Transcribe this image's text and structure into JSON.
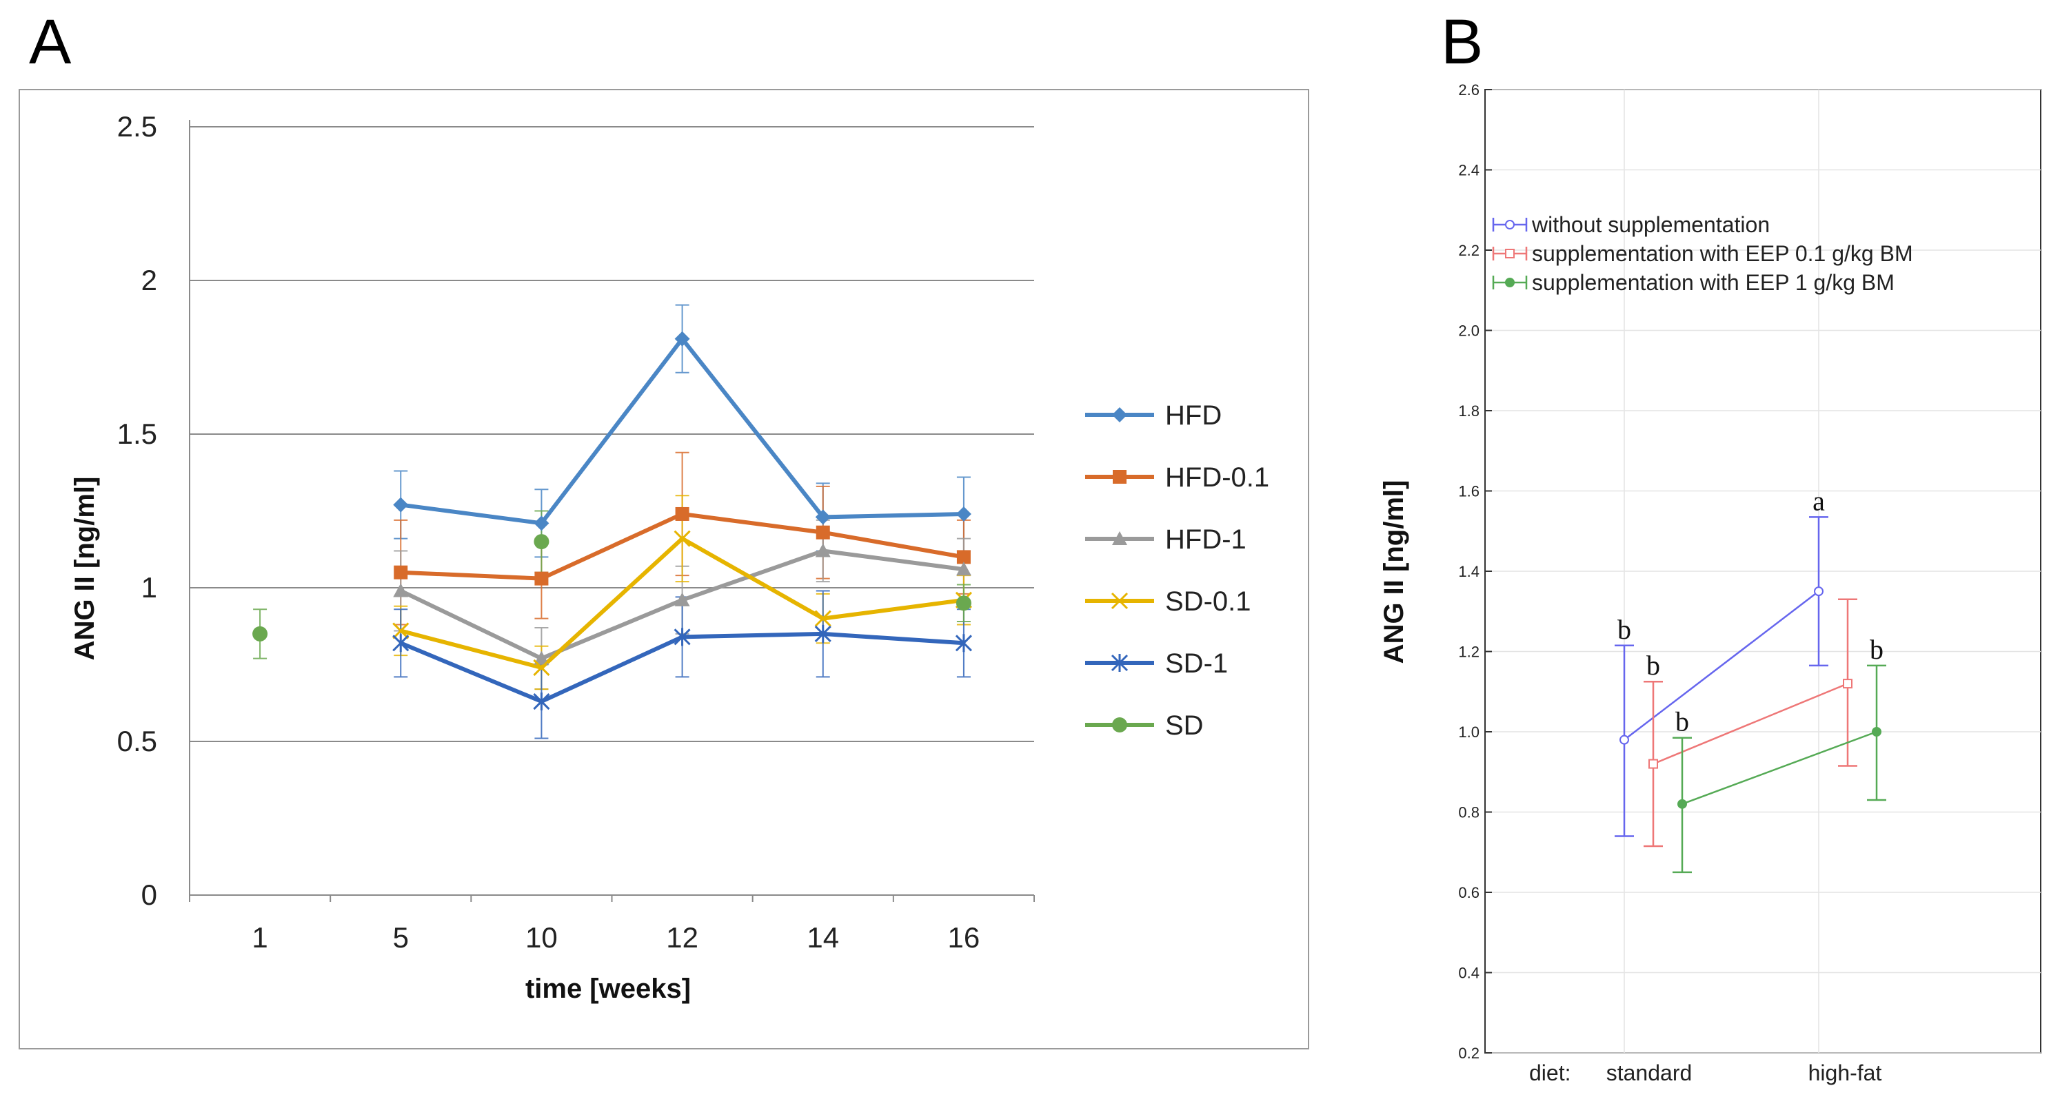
{
  "colors": {
    "HFD": "#4a86c5",
    "HFD-0.1": "#d86b2a",
    "HFD-1": "#9a9a9a",
    "SD-0.1": "#e6b400",
    "SD-1": "#3366bb",
    "SD": "#6aa84f",
    "b_without": "#6666ee",
    "b_eep01": "#ee7777",
    "b_eep1": "#55aa55"
  },
  "chart_data": [
    {
      "panel": "A",
      "type": "line",
      "xlabel": "time [weeks]",
      "ylabel": "ANG II [ng/ml]",
      "categories": [
        "1",
        "5",
        "10",
        "12",
        "14",
        "16"
      ],
      "yticks": [
        "0",
        "0.5",
        "1",
        "1.5",
        "2",
        "2.5"
      ],
      "ylim": [
        0,
        2.5
      ],
      "grid": true,
      "legend_position": "right",
      "series": [
        {
          "name": "HFD",
          "marker": "diamond",
          "values": [
            null,
            1.27,
            1.21,
            1.81,
            1.23,
            1.24
          ],
          "err": [
            null,
            0.11,
            0.11,
            0.11,
            0.11,
            0.12
          ]
        },
        {
          "name": "HFD-0.1",
          "marker": "square",
          "values": [
            null,
            1.05,
            1.03,
            1.24,
            1.18,
            1.1
          ],
          "err": [
            null,
            0.17,
            0.13,
            0.2,
            0.15,
            0.12
          ]
        },
        {
          "name": "HFD-1",
          "marker": "triangle",
          "values": [
            null,
            0.99,
            0.77,
            0.96,
            1.12,
            1.06
          ],
          "err": [
            null,
            0.13,
            0.1,
            0.11,
            0.1,
            0.1
          ]
        },
        {
          "name": "SD-0.1",
          "marker": "x",
          "values": [
            null,
            0.86,
            0.74,
            1.16,
            0.9,
            0.96
          ],
          "err": [
            null,
            0.08,
            0.07,
            0.14,
            0.08,
            0.08
          ]
        },
        {
          "name": "SD-1",
          "marker": "star",
          "values": [
            null,
            0.82,
            0.63,
            0.84,
            0.85,
            0.82
          ],
          "err": [
            null,
            0.11,
            0.12,
            0.13,
            0.14,
            0.11
          ]
        },
        {
          "name": "SD",
          "marker": "circle",
          "values": [
            0.85,
            null,
            1.15,
            null,
            null,
            0.95
          ],
          "err": [
            0.08,
            null,
            0.1,
            null,
            null,
            0.06
          ]
        }
      ]
    },
    {
      "panel": "B",
      "type": "line",
      "ylabel": "ANG II [ng/ml]",
      "xprefix": "diet:",
      "categories": [
        "standard",
        "high-fat"
      ],
      "yticks": [
        "0.2",
        "0.4",
        "0.6",
        "0.8",
        "1.0",
        "1.2",
        "1.4",
        "1.6",
        "1.8",
        "2.0",
        "2.2",
        "2.4",
        "2.6"
      ],
      "ylim": [
        0.2,
        2.6
      ],
      "grid": true,
      "legend_position": "top-left",
      "series": [
        {
          "name": "without  supplementation",
          "values": [
            0.98,
            1.35
          ],
          "err_low": [
            0.74,
            1.165
          ],
          "err_high": [
            1.215,
            1.535
          ],
          "letters": [
            "b",
            "a"
          ]
        },
        {
          "name": "supplementation  with  EEP 0.1 g/kg BM",
          "values": [
            0.92,
            1.12
          ],
          "err_low": [
            0.715,
            0.915
          ],
          "err_high": [
            1.125,
            1.33
          ],
          "letters": [
            "b",
            ""
          ]
        },
        {
          "name": "supplementation  with  EEP 1 g/kg BM",
          "values": [
            0.82,
            1.0
          ],
          "err_low": [
            0.65,
            0.83
          ],
          "err_high": [
            0.985,
            1.165
          ],
          "letters": [
            "b",
            "b"
          ]
        }
      ]
    }
  ],
  "panels": {
    "a_letter": "A",
    "b_letter": "B"
  }
}
